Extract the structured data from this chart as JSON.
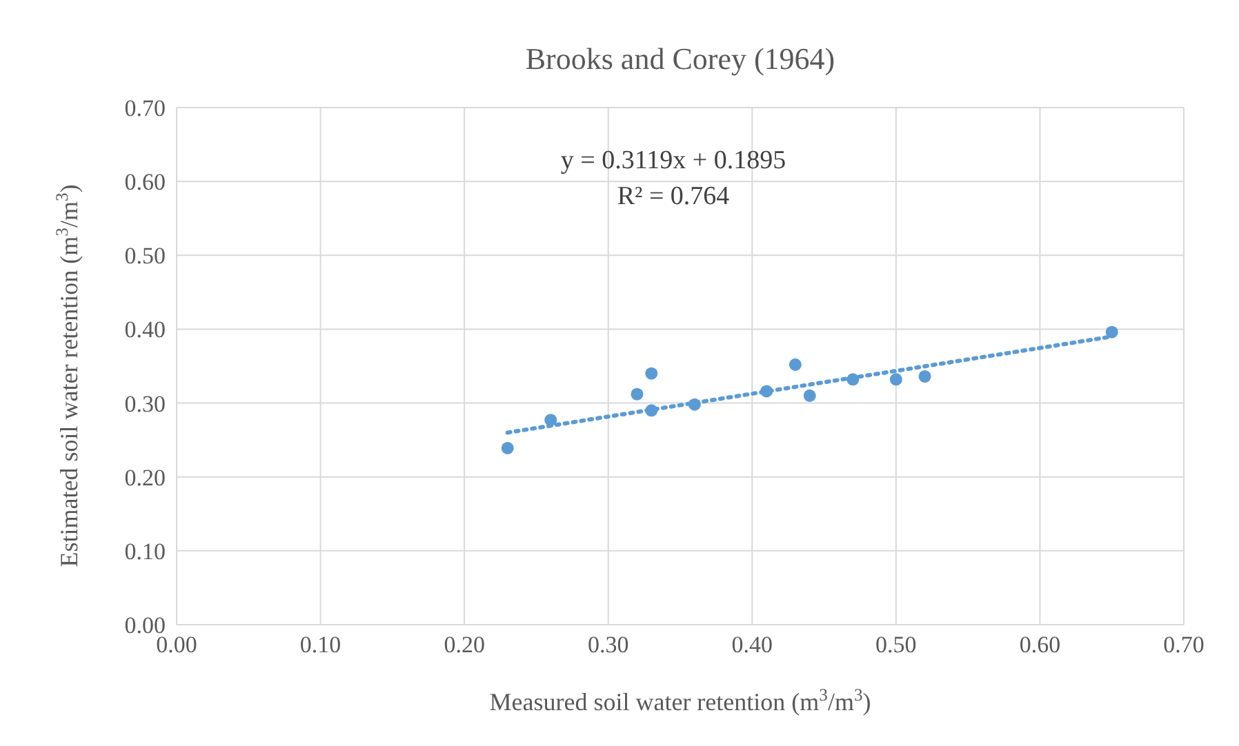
{
  "chart_data": {
    "type": "scatter",
    "title": "Brooks and Corey (1964)",
    "xlabel": "Measured soil water retention (m$^{3}$/m$^{3}$)",
    "ylabel": "Estimated soil water retention (m$^{3}$/m$^{3}$)",
    "annotations": [
      "y = 0.3119x + 0.1895",
      "R² = 0.764"
    ],
    "x": [
      0.23,
      0.26,
      0.32,
      0.33,
      0.33,
      0.36,
      0.41,
      0.43,
      0.44,
      0.47,
      0.5,
      0.52,
      0.65
    ],
    "series": [
      {
        "color": "#5b9bd5",
        "marker": "circle",
        "values": [
          0.239,
          0.277,
          0.312,
          0.34,
          0.29,
          0.298,
          0.316,
          0.352,
          0.31,
          0.332,
          0.332,
          0.336,
          0.396
        ]
      },
      {
        "type": "line",
        "color": "#5b9bd5",
        "line_style": "dotted",
        "marker": "none",
        "x": [
          0.23,
          0.65
        ],
        "values": [
          0.26,
          0.39
        ]
      }
    ],
    "xlim": [
      0,
      0.7
    ],
    "ylim": [
      0,
      0.7
    ],
    "xticks": [
      {
        "value": 0,
        "label": "0.00"
      },
      {
        "value": 0.1,
        "label": "0.10"
      },
      {
        "value": 0.2,
        "label": "0.20"
      },
      {
        "value": 0.3,
        "label": "0.30"
      },
      {
        "value": 0.4,
        "label": "0.40"
      },
      {
        "value": 0.5,
        "label": "0.50"
      },
      {
        "value": 0.6,
        "label": "0.60"
      },
      {
        "value": 0.7,
        "label": "0.70"
      }
    ],
    "yticks": [
      {
        "value": 0,
        "label": "0.00"
      },
      {
        "value": 0.1,
        "label": "0.10"
      },
      {
        "value": 0.2,
        "label": "0.20"
      },
      {
        "value": 0.3,
        "label": "0.30"
      },
      {
        "value": 0.4,
        "label": "0.40"
      },
      {
        "value": 0.5,
        "label": "0.50"
      },
      {
        "value": 0.6,
        "label": "0.60"
      },
      {
        "value": 0.7,
        "label": "0.70"
      }
    ],
    "grid": true
  }
}
